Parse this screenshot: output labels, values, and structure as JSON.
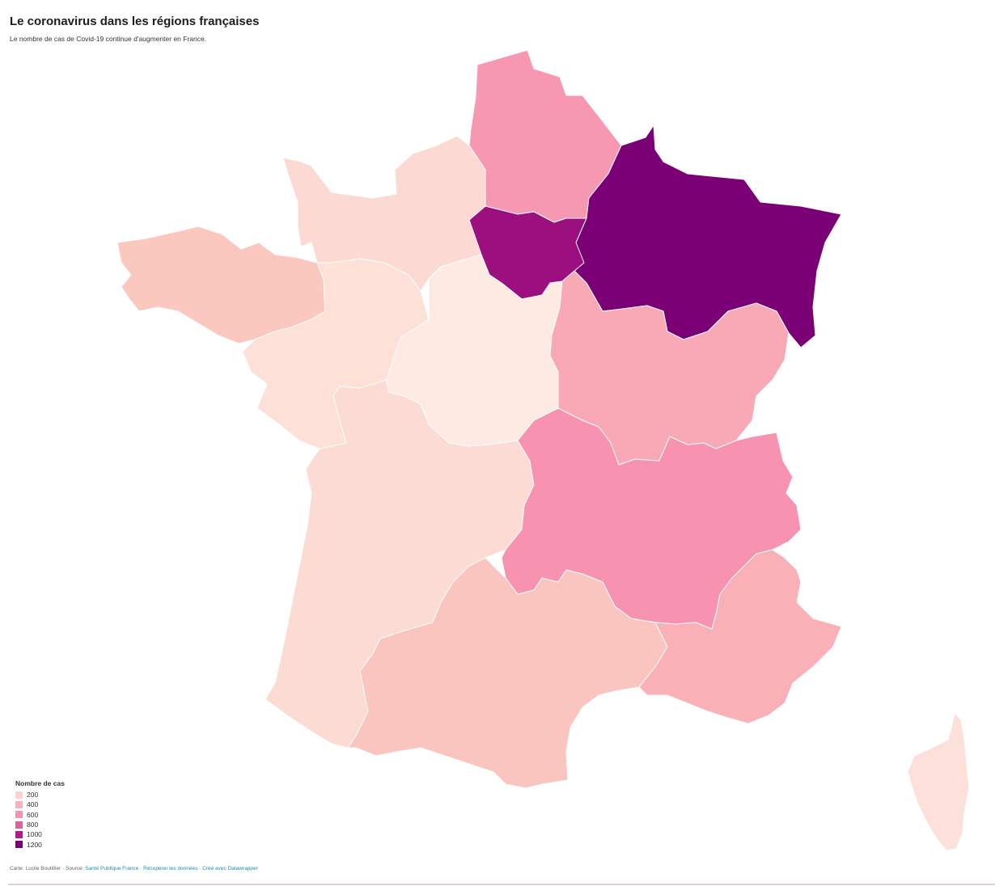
{
  "header": {
    "title": "Le coronavirus dans les régions françaises",
    "subtitle": "Le nombre de cas de Covid-19 continue d'augmenter en France."
  },
  "legend": {
    "title": "Nombre de cas",
    "items": [
      {
        "label": "200",
        "color": "#fbd4cc"
      },
      {
        "label": "400",
        "color": "#f8b0bb"
      },
      {
        "label": "600",
        "color": "#f592b2"
      },
      {
        "label": "800",
        "color": "#e05fa1"
      },
      {
        "label": "1000",
        "color": "#b2198c"
      },
      {
        "label": "1200",
        "color": "#7c0075"
      }
    ]
  },
  "map_data": {
    "regions": [
      {
        "name": "Hauts-de-France",
        "color": "#f798b3"
      },
      {
        "name": "Grand Est",
        "color": "#7c0075"
      },
      {
        "name": "Île-de-France",
        "color": "#9c0f7f"
      },
      {
        "name": "Normandie",
        "color": "#fcdad3"
      },
      {
        "name": "Bretagne",
        "color": "#fbc8c0"
      },
      {
        "name": "Pays de la Loire",
        "color": "#fde0d8"
      },
      {
        "name": "Centre-Val de Loire",
        "color": "#fdebe3"
      },
      {
        "name": "Bourgogne-Franche-Comté",
        "color": "#f9a8b5"
      },
      {
        "name": "Nouvelle-Aquitaine",
        "color": "#fcdbd4"
      },
      {
        "name": "Auvergne-Rhône-Alpes",
        "color": "#f792b1"
      },
      {
        "name": "Occitanie",
        "color": "#fbc5bf"
      },
      {
        "name": "Provence-Alpes-Côte d'Azur",
        "color": "#f9b0b6"
      },
      {
        "name": "Corse",
        "color": "#fde0da"
      }
    ]
  },
  "footer": {
    "prefix": "Carte: Lucile Boutillier · Source: ",
    "source": "Santé Publique France",
    "sep1": " · ",
    "download": "Récupérer les données",
    "sep2": " · ",
    "made_with": "Créé avec Datawrapper"
  }
}
